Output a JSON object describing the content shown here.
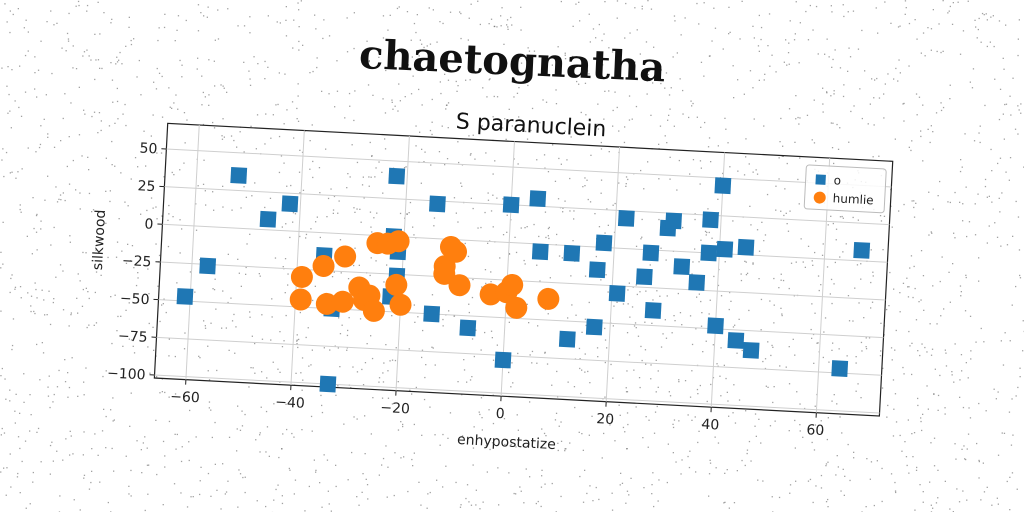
{
  "figure": {
    "title": "chaetognatha"
  },
  "chart_data": {
    "type": "scatter",
    "title": "S paranuclein",
    "xlabel": "enhypostatize",
    "ylabel": "silkwood",
    "xlim": [
      -66,
      72
    ],
    "ylim": [
      -102,
      67
    ],
    "xticks": [
      "−60",
      "−40",
      "−20",
      "0",
      "20",
      "40",
      "60"
    ],
    "xtick_values": [
      -60,
      -40,
      -20,
      0,
      20,
      40,
      60
    ],
    "yticks": [
      "50",
      "25",
      "0",
      "−25",
      "−50",
      "−75",
      "−100"
    ],
    "ytick_values": [
      50,
      25,
      0,
      -25,
      -50,
      -75,
      -100
    ],
    "grid": true,
    "legend_position": "top-right",
    "series": [
      {
        "name": "o",
        "color": "#1f77b4",
        "marker": "square",
        "points": [
          {
            "x": -52,
            "y": 35
          },
          {
            "x": -46,
            "y": 7
          },
          {
            "x": -42,
            "y": 18
          },
          {
            "x": -57,
            "y": -26
          },
          {
            "x": -61,
            "y": -47
          },
          {
            "x": -35,
            "y": -15
          },
          {
            "x": -33,
            "y": -50
          },
          {
            "x": -33,
            "y": -100
          },
          {
            "x": -22,
            "y": 40
          },
          {
            "x": -22,
            "y": 0
          },
          {
            "x": -21,
            "y": -10
          },
          {
            "x": -21,
            "y": -26
          },
          {
            "x": -22,
            "y": -40
          },
          {
            "x": -14,
            "y": 23
          },
          {
            "x": -14,
            "y": -50
          },
          {
            "x": -7,
            "y": -58
          },
          {
            "x": 0,
            "y": 25
          },
          {
            "x": 5,
            "y": 30
          },
          {
            "x": 6,
            "y": -5
          },
          {
            "x": 0,
            "y": -78
          },
          {
            "x": 12,
            "y": -5
          },
          {
            "x": 12,
            "y": -62
          },
          {
            "x": 18,
            "y": 3
          },
          {
            "x": 17,
            "y": -15
          },
          {
            "x": 17,
            "y": -53
          },
          {
            "x": 22,
            "y": 20
          },
          {
            "x": 21,
            "y": -30
          },
          {
            "x": 27,
            "y": -2
          },
          {
            "x": 26,
            "y": -18
          },
          {
            "x": 28,
            "y": -40
          },
          {
            "x": 30,
            "y": 15
          },
          {
            "x": 31,
            "y": 20
          },
          {
            "x": 33,
            "y": -10
          },
          {
            "x": 36,
            "y": -20
          },
          {
            "x": 40,
            "y": 45
          },
          {
            "x": 38,
            "y": 22
          },
          {
            "x": 38,
            "y": 0
          },
          {
            "x": 41,
            "y": 3
          },
          {
            "x": 40,
            "y": -48
          },
          {
            "x": 45,
            "y": 5
          },
          {
            "x": 44,
            "y": -57
          },
          {
            "x": 47,
            "y": -63
          },
          {
            "x": 64,
            "y": -72
          },
          {
            "x": 67,
            "y": 7
          }
        ]
      },
      {
        "name": "humlie",
        "color": "#ff7f0e",
        "marker": "circle",
        "points": [
          {
            "x": -39,
            "y": -30
          },
          {
            "x": -39,
            "y": -45
          },
          {
            "x": -35,
            "y": -22
          },
          {
            "x": -34,
            "y": -47
          },
          {
            "x": -31,
            "y": -15
          },
          {
            "x": -31,
            "y": -45
          },
          {
            "x": -28,
            "y": -35
          },
          {
            "x": -27,
            "y": -43
          },
          {
            "x": -26,
            "y": -40
          },
          {
            "x": -25,
            "y": -50
          },
          {
            "x": -25,
            "y": -5
          },
          {
            "x": -23,
            "y": -5
          },
          {
            "x": -21,
            "y": -3
          },
          {
            "x": -21,
            "y": -32
          },
          {
            "x": -20,
            "y": -45
          },
          {
            "x": -12,
            "y": -18
          },
          {
            "x": -12,
            "y": -23
          },
          {
            "x": -11,
            "y": -5
          },
          {
            "x": -10,
            "y": -8
          },
          {
            "x": -9,
            "y": -30
          },
          {
            "x": -3,
            "y": -35
          },
          {
            "x": 0,
            "y": -33
          },
          {
            "x": 1,
            "y": -28
          },
          {
            "x": 2,
            "y": -43
          },
          {
            "x": 8,
            "y": -36
          }
        ]
      }
    ]
  }
}
